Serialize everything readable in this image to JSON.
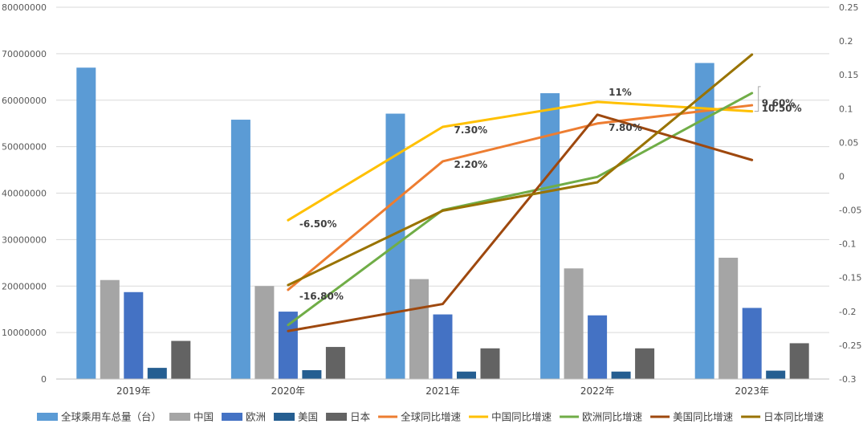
{
  "chart_data": {
    "type": "bar",
    "categories": [
      "2019年",
      "2020年",
      "2021年",
      "2022年",
      "2023年"
    ],
    "y_left": {
      "min": 0,
      "max": 80000000,
      "ticks": [
        "0",
        "10000000",
        "20000000",
        "30000000",
        "40000000",
        "50000000",
        "60000000",
        "70000000",
        "80000000"
      ]
    },
    "y_right": {
      "min": -0.3,
      "max": 0.25,
      "ticks": [
        "-0.3",
        "-0.25",
        "-0.2",
        "-0.15",
        "-0.1",
        "-0.05",
        "0",
        "0.05",
        "0.1",
        "0.15",
        "0.2",
        "0.25"
      ]
    },
    "bar_series": [
      {
        "name": "全球乘用车总量（台）",
        "color": "#5B9BD5",
        "values": [
          67000000,
          55800000,
          57100000,
          61500000,
          68000000
        ]
      },
      {
        "name": "中国",
        "color": "#A5A5A5",
        "values": [
          21300000,
          20000000,
          21500000,
          23800000,
          26100000
        ]
      },
      {
        "name": "欧洲",
        "color": "#4472C4",
        "values": [
          18700000,
          14500000,
          13900000,
          13700000,
          15300000
        ]
      },
      {
        "name": "美国",
        "color": "#255E91",
        "values": [
          2400000,
          1900000,
          1600000,
          1600000,
          1800000
        ]
      },
      {
        "name": "日本",
        "color": "#636363",
        "values": [
          8200000,
          6900000,
          6600000,
          6600000,
          7700000
        ]
      }
    ],
    "line_series": [
      {
        "name": "全球同比增速",
        "color": "#ED7D31",
        "values": [
          null,
          -0.168,
          0.022,
          0.078,
          0.105
        ]
      },
      {
        "name": "中国同比增速",
        "color": "#FFC000",
        "values": [
          null,
          -0.065,
          0.073,
          0.11,
          0.096
        ]
      },
      {
        "name": "欧洲同比增速",
        "color": "#70AD47",
        "values": [
          null,
          -0.22,
          -0.05,
          -0.001,
          0.123
        ]
      },
      {
        "name": "美国同比增速",
        "color": "#9E480E",
        "values": [
          null,
          -0.229,
          -0.189,
          0.091,
          0.024
        ]
      },
      {
        "name": "日本同比增速",
        "color": "#997300",
        "values": [
          null,
          -0.161,
          -0.051,
          -0.009,
          0.18
        ]
      }
    ],
    "data_labels": [
      {
        "text": "-6.50%",
        "series": 1,
        "index": 1
      },
      {
        "text": "-16.80%",
        "series": 0,
        "index": 1
      },
      {
        "text": "7.30%",
        "series": 1,
        "index": 2
      },
      {
        "text": "2.20%",
        "series": 0,
        "index": 2
      },
      {
        "text": "11%",
        "series": 1,
        "index": 3
      },
      {
        "text": "7.80%",
        "series": 0,
        "index": 3
      },
      {
        "text": "9.60%",
        "series": 1,
        "index": 4
      },
      {
        "text": "10.50%",
        "series": 0,
        "index": 4
      }
    ],
    "legend_position": "bottom",
    "grid": true
  }
}
